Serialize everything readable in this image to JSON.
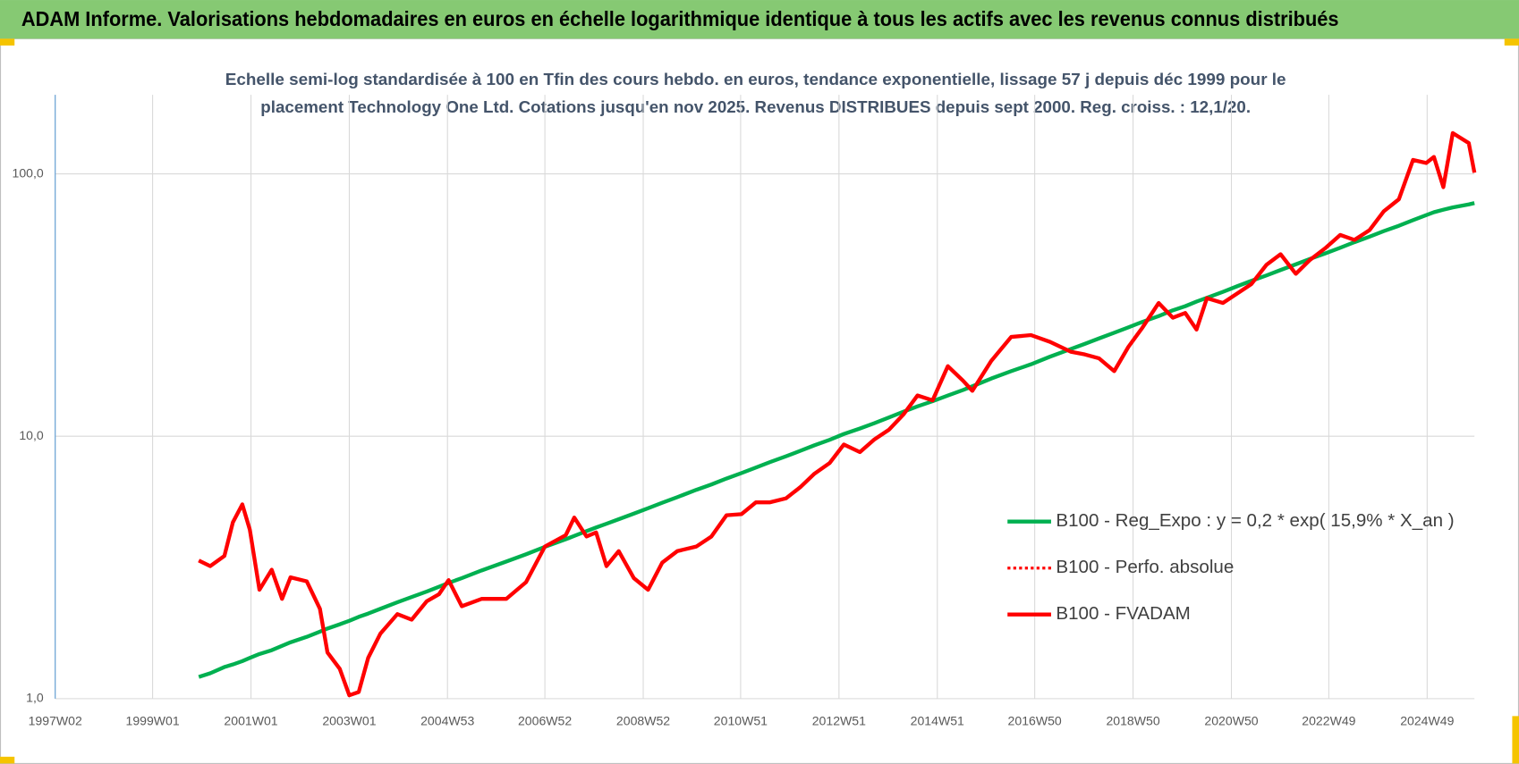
{
  "header": {
    "title": "ADAM Informe. Valorisations hebdomadaires en euros en échelle logarithmique identique à tous les actifs avec les revenus connus distribués"
  },
  "chart_data": {
    "type": "line",
    "title": [
      "Echelle semi-log standardisée à 100 en Tfin des cours hebdo. en euros, tendance exponentielle, lissage 57 j depuis déc 1999 pour le",
      "placement Technology One Ltd. Cotations jusqu'en nov 2025. Revenus DISTRIBUES depuis sept 2000. Reg. croiss. : 12,1/20."
    ],
    "log_scale": true,
    "grid": true,
    "legend": "right",
    "xlim": [
      "1997W02",
      "2025W47"
    ],
    "xticks": [
      "1997W02",
      "1999W01",
      "2001W01",
      "2003W01",
      "2004W53",
      "2006W52",
      "2008W52",
      "2010W51",
      "2012W51",
      "2014W51",
      "2016W50",
      "2018W50",
      "2020W50",
      "2022W49",
      "2024W49"
    ],
    "ylim": [
      1,
      200
    ],
    "yticks": [
      {
        "value": 1,
        "label": "1,0"
      },
      {
        "value": 10,
        "label": "10,0"
      },
      {
        "value": 100,
        "label": "100,0"
      }
    ],
    "x": [
      "1999W50",
      "2000W10",
      "2000W25",
      "2000W34",
      "2000W44",
      "2000W52",
      "2001W10",
      "2001W23",
      "2001W34",
      "2001W43",
      "2002W08",
      "2002W22",
      "2002W30",
      "2002W43",
      "2003W01",
      "2003W11",
      "2003W21",
      "2003W34",
      "2003W52",
      "2004W15",
      "2004W31",
      "2004W44",
      "2005W02",
      "2005W16",
      "2005W37",
      "2006W11",
      "2006W32",
      "2006W52",
      "2007W22",
      "2007W31",
      "2007W44",
      "2008W02",
      "2008W13",
      "2008W26",
      "2008W42",
      "2009W05",
      "2009W20",
      "2009W36",
      "2010W04",
      "2010W20",
      "2010W36",
      "2010W52",
      "2011W15",
      "2011W30",
      "2011W47",
      "2012W10",
      "2012W25",
      "2012W41",
      "2013W04",
      "2013W21",
      "2013W36",
      "2013W52",
      "2014W15",
      "2014W30",
      "2014W46",
      "2015W10",
      "2015W26",
      "2015W36",
      "2016W04",
      "2016W25",
      "2016W46",
      "2017W14",
      "2017W36",
      "2017W51",
      "2018W14",
      "2018W30",
      "2018W45",
      "2019W08",
      "2019W25",
      "2019W40",
      "2020W01",
      "2020W13",
      "2020W24",
      "2020W41",
      "2021W04",
      "2021W19",
      "2021W35",
      "2021W50",
      "2022W14",
      "2022W29",
      "2022W45",
      "2023W09",
      "2023W24",
      "2023W40",
      "2024W03",
      "2024W19",
      "2024W34",
      "2024W48",
      "2025W04",
      "2025W14",
      "2025W24",
      "2025W41",
      "2025W47"
    ],
    "series": [
      {
        "name": "B100 - Reg_Expo : y = 0,2 * exp( 15,9% *  X_an )",
        "color": "#00b050",
        "line_style": "solid",
        "values": [
          1.21,
          1.25,
          1.32,
          1.35,
          1.39,
          1.43,
          1.48,
          1.53,
          1.59,
          1.64,
          1.72,
          1.8,
          1.85,
          1.92,
          1.98,
          2.05,
          2.11,
          2.2,
          2.33,
          2.44,
          2.56,
          2.67,
          2.76,
          2.88,
          3.08,
          3.33,
          3.55,
          3.79,
          4.05,
          4.17,
          4.35,
          4.49,
          4.64,
          4.83,
          5.07,
          5.32,
          5.58,
          5.86,
          6.25,
          6.55,
          6.9,
          7.24,
          7.6,
          7.97,
          8.39,
          8.8,
          9.24,
          9.69,
          10.2,
          10.7,
          11.2,
          11.8,
          12.4,
          13,
          13.6,
          14.3,
          15,
          15.5,
          16.6,
          17.7,
          18.8,
          20.1,
          21.5,
          22.5,
          23.6,
          24.8,
          26,
          27.3,
          28.7,
          30.2,
          31.3,
          32.6,
          33.7,
          35.5,
          37.3,
          39.1,
          41,
          43,
          45.2,
          47.4,
          49.7,
          52.3,
          54.9,
          57.6,
          60.5,
          63.4,
          66.6,
          69.6,
          71.4,
          73,
          74.5,
          76.5,
          77.4
        ]
      },
      {
        "name": "B100 - Perfo. absolue",
        "color": "#ff0000",
        "line_style": "dotted",
        "values": [
          3.36,
          3.2,
          3.5,
          4.7,
          5.5,
          4.4,
          2.6,
          3.1,
          2.4,
          2.9,
          2.8,
          2.2,
          1.5,
          1.3,
          1.03,
          1.06,
          1.43,
          1.77,
          2.1,
          2,
          2.35,
          2.5,
          2.83,
          2.25,
          2.4,
          2.4,
          2.78,
          3.8,
          4.2,
          4.9,
          4.15,
          4.3,
          3.2,
          3.65,
          2.88,
          2.6,
          3.3,
          3.65,
          3.8,
          4.15,
          5,
          5.05,
          5.6,
          5.6,
          5.8,
          6.4,
          7.2,
          7.9,
          9.3,
          8.7,
          9.7,
          10.6,
          12.1,
          14.3,
          13.7,
          18.5,
          16.3,
          14.9,
          19.4,
          23.9,
          24.3,
          22.9,
          21,
          20.5,
          19.8,
          17.7,
          21.9,
          26,
          32.2,
          28.3,
          29.5,
          25.5,
          33.6,
          32.2,
          35,
          38,
          45,
          49.4,
          41.6,
          47,
          52,
          58.5,
          56,
          61,
          72,
          80,
          113,
          110,
          116,
          89,
          143,
          131,
          101
        ]
      },
      {
        "name": "B100 - FVADAM",
        "color": "#ff0000",
        "line_style": "solid",
        "values": [
          3.36,
          3.2,
          3.5,
          4.7,
          5.5,
          4.4,
          2.6,
          3.1,
          2.4,
          2.9,
          2.8,
          2.2,
          1.5,
          1.3,
          1.03,
          1.06,
          1.43,
          1.77,
          2.1,
          2,
          2.35,
          2.5,
          2.83,
          2.25,
          2.4,
          2.4,
          2.78,
          3.8,
          4.2,
          4.9,
          4.15,
          4.3,
          3.2,
          3.65,
          2.88,
          2.6,
          3.3,
          3.65,
          3.8,
          4.15,
          5,
          5.05,
          5.6,
          5.6,
          5.8,
          6.4,
          7.2,
          7.9,
          9.3,
          8.7,
          9.7,
          10.6,
          12.1,
          14.3,
          13.7,
          18.5,
          16.3,
          14.9,
          19.4,
          23.9,
          24.3,
          22.9,
          21,
          20.5,
          19.8,
          17.7,
          21.9,
          26,
          32.2,
          28.3,
          29.5,
          25.5,
          33.6,
          32.2,
          35,
          38,
          45,
          49.4,
          41.6,
          47,
          52,
          58.5,
          56,
          61,
          72,
          80,
          113,
          110,
          116,
          89,
          143,
          131,
          101
        ]
      }
    ]
  }
}
